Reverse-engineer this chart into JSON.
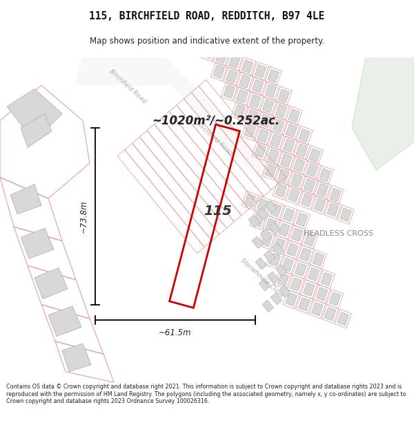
{
  "title": "115, BIRCHFIELD ROAD, REDDITCH, B97 4LE",
  "subtitle": "Map shows position and indicative extent of the property.",
  "area_label": "~1020m²/~0.252ac.",
  "property_number": "115",
  "width_label": "~61.5m",
  "height_label": "~73.8m",
  "location_label": "HEADLESS CROSS",
  "road_label_1": "Birchfield Road",
  "road_label_2": "Stonehouse Close",
  "bg_color": "#ffffff",
  "map_bg": "#ffffff",
  "lot_line_color": "#e8a0a0",
  "building_fill": "#d8d8d8",
  "building_edge": "#aaaaaa",
  "property_outline_color": "#cc0000",
  "green_fill": "#e8f0e8",
  "footer_text": "Contains OS data © Crown copyright and database right 2021. This information is subject to Crown copyright and database rights 2023 and is reproduced with the permission of HM Land Registry. The polygons (including the associated geometry, namely x, y co-ordinates) are subject to Crown copyright and database rights 2023 Ordnance Survey 100026316."
}
